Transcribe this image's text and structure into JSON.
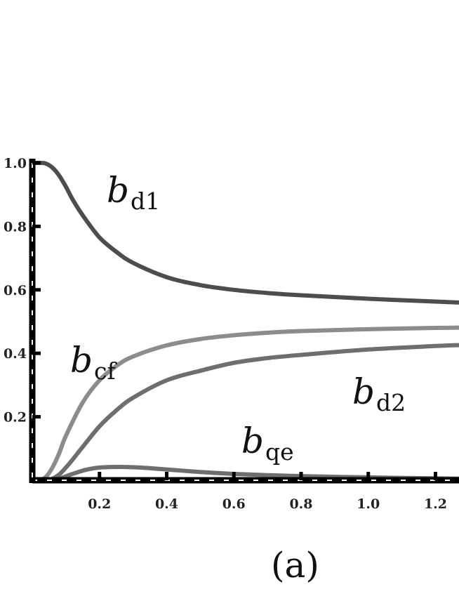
{
  "chart_data": {
    "type": "line",
    "panel_label": "(a)",
    "x_ticks": [
      0.2,
      0.4,
      0.6,
      0.8,
      1.0,
      1.2
    ],
    "x_tick_labels": [
      "0.2",
      "0.4",
      "0.6",
      "0.8",
      "1.0",
      "1.2"
    ],
    "y_ticks": [
      0.2,
      0.4,
      0.6,
      0.8,
      1.0
    ],
    "y_tick_labels": [
      "0.2",
      "0.4",
      "0.6",
      "0.8",
      "1.0"
    ],
    "xlim": [
      0,
      1.27
    ],
    "ylim": [
      0,
      1.0
    ],
    "grid": false,
    "series": [
      {
        "name": "d1",
        "label_main": "b",
        "label_sub": "d1",
        "color": "#4d4d4d",
        "x": [
          0,
          0.02,
          0.04,
          0.06,
          0.08,
          0.1,
          0.12,
          0.15,
          0.2,
          0.25,
          0.3,
          0.4,
          0.5,
          0.6,
          0.7,
          0.8,
          1.0,
          1.2,
          1.27
        ],
        "y": [
          1.0,
          1.0,
          0.998,
          0.985,
          0.96,
          0.925,
          0.885,
          0.835,
          0.765,
          0.72,
          0.685,
          0.64,
          0.615,
          0.6,
          0.59,
          0.583,
          0.572,
          0.563,
          0.56
        ]
      },
      {
        "name": "cf",
        "label_main": "b",
        "label_sub": "cf",
        "color": "#8c8c8c",
        "x": [
          0,
          0.02,
          0.04,
          0.06,
          0.08,
          0.1,
          0.15,
          0.2,
          0.25,
          0.3,
          0.4,
          0.5,
          0.6,
          0.7,
          0.8,
          1.0,
          1.2,
          1.27
        ],
        "y": [
          0,
          0.0,
          0.01,
          0.04,
          0.085,
          0.14,
          0.245,
          0.315,
          0.36,
          0.39,
          0.425,
          0.445,
          0.457,
          0.465,
          0.47,
          0.476,
          0.48,
          0.481
        ]
      },
      {
        "name": "d2",
        "label_main": "b",
        "label_sub": "d2",
        "color": "#6e6e6e",
        "x": [
          0,
          0.04,
          0.06,
          0.08,
          0.1,
          0.12,
          0.15,
          0.2,
          0.25,
          0.3,
          0.4,
          0.5,
          0.6,
          0.7,
          0.8,
          1.0,
          1.2,
          1.27
        ],
        "y": [
          0,
          0.0,
          0.005,
          0.018,
          0.04,
          0.065,
          0.105,
          0.17,
          0.22,
          0.26,
          0.315,
          0.345,
          0.37,
          0.385,
          0.395,
          0.412,
          0.423,
          0.426
        ]
      },
      {
        "name": "qe",
        "label_main": "b",
        "label_sub": "qe",
        "color": "#6e6e6e",
        "x": [
          0,
          0.05,
          0.08,
          0.12,
          0.16,
          0.2,
          0.26,
          0.32,
          0.4,
          0.5,
          0.6,
          0.7,
          0.8,
          1.0,
          1.2,
          1.27
        ],
        "y": [
          0,
          0.0,
          0.005,
          0.02,
          0.033,
          0.04,
          0.042,
          0.04,
          0.034,
          0.026,
          0.02,
          0.016,
          0.013,
          0.009,
          0.006,
          0.005
        ]
      }
    ]
  }
}
